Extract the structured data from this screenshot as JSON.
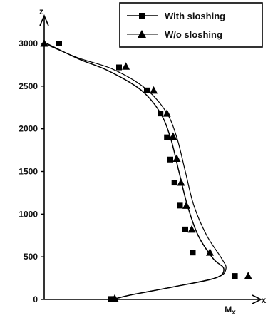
{
  "chart_data": {
    "type": "line",
    "title": "",
    "xlabel": "x",
    "ylabel": "z",
    "x_axis_name": "Mx",
    "xlim": [
      0,
      1.0
    ],
    "ylim": [
      0,
      3100
    ],
    "yticks": [
      "0",
      "500",
      "1000",
      "1500",
      "2000",
      "2500",
      "3000"
    ],
    "x_ticks_labeled": false,
    "grid": false,
    "legend_position": "top-right",
    "colors": {
      "line": "#000000",
      "text": "#111111",
      "background": "#ffffff"
    },
    "series": [
      {
        "name": "With sloshing",
        "marker": "square",
        "curve": [
          {
            "x": 0.012,
            "y": 3000
          },
          {
            "x": 0.16,
            "y": 2820
          },
          {
            "x": 0.3,
            "y": 2680
          },
          {
            "x": 0.45,
            "y": 2460
          },
          {
            "x": 0.54,
            "y": 2200
          },
          {
            "x": 0.59,
            "y": 1900
          },
          {
            "x": 0.63,
            "y": 1500
          },
          {
            "x": 0.67,
            "y": 1100
          },
          {
            "x": 0.72,
            "y": 750
          },
          {
            "x": 0.79,
            "y": 480
          },
          {
            "x": 0.84,
            "y": 360
          },
          {
            "x": 0.8,
            "y": 250
          },
          {
            "x": 0.61,
            "y": 150
          },
          {
            "x": 0.41,
            "y": 55
          },
          {
            "x": 0.32,
            "y": 0
          }
        ],
        "markers": [
          {
            "x": 0.07,
            "y": 3000
          },
          {
            "x": 0.35,
            "y": 2720
          },
          {
            "x": 0.48,
            "y": 2450
          },
          {
            "x": 0.544,
            "y": 2180
          },
          {
            "x": 0.574,
            "y": 1900
          },
          {
            "x": 0.59,
            "y": 1640
          },
          {
            "x": 0.609,
            "y": 1370
          },
          {
            "x": 0.635,
            "y": 1100
          },
          {
            "x": 0.66,
            "y": 820
          },
          {
            "x": 0.695,
            "y": 550
          },
          {
            "x": 0.892,
            "y": 275
          },
          {
            "x": 0.313,
            "y": 5
          }
        ]
      },
      {
        "name": "W/o sloshing",
        "marker": "triangle",
        "curve": [
          {
            "x": 0.0,
            "y": 3000
          },
          {
            "x": 0.16,
            "y": 2830
          },
          {
            "x": 0.32,
            "y": 2700
          },
          {
            "x": 0.47,
            "y": 2480
          },
          {
            "x": 0.57,
            "y": 2200
          },
          {
            "x": 0.62,
            "y": 1900
          },
          {
            "x": 0.66,
            "y": 1500
          },
          {
            "x": 0.7,
            "y": 1100
          },
          {
            "x": 0.76,
            "y": 750
          },
          {
            "x": 0.83,
            "y": 480
          },
          {
            "x": 0.85,
            "y": 360
          },
          {
            "x": 0.81,
            "y": 260
          },
          {
            "x": 0.63,
            "y": 160
          },
          {
            "x": 0.42,
            "y": 60
          },
          {
            "x": 0.32,
            "y": 0
          }
        ],
        "markers": [
          {
            "x": 0.0,
            "y": 3000
          },
          {
            "x": 0.382,
            "y": 2730
          },
          {
            "x": 0.512,
            "y": 2450
          },
          {
            "x": 0.574,
            "y": 2180
          },
          {
            "x": 0.603,
            "y": 1910
          },
          {
            "x": 0.62,
            "y": 1650
          },
          {
            "x": 0.64,
            "y": 1370
          },
          {
            "x": 0.665,
            "y": 1100
          },
          {
            "x": 0.69,
            "y": 820
          },
          {
            "x": 0.775,
            "y": 550
          },
          {
            "x": 0.954,
            "y": 275
          },
          {
            "x": 0.33,
            "y": 10
          }
        ]
      }
    ]
  }
}
